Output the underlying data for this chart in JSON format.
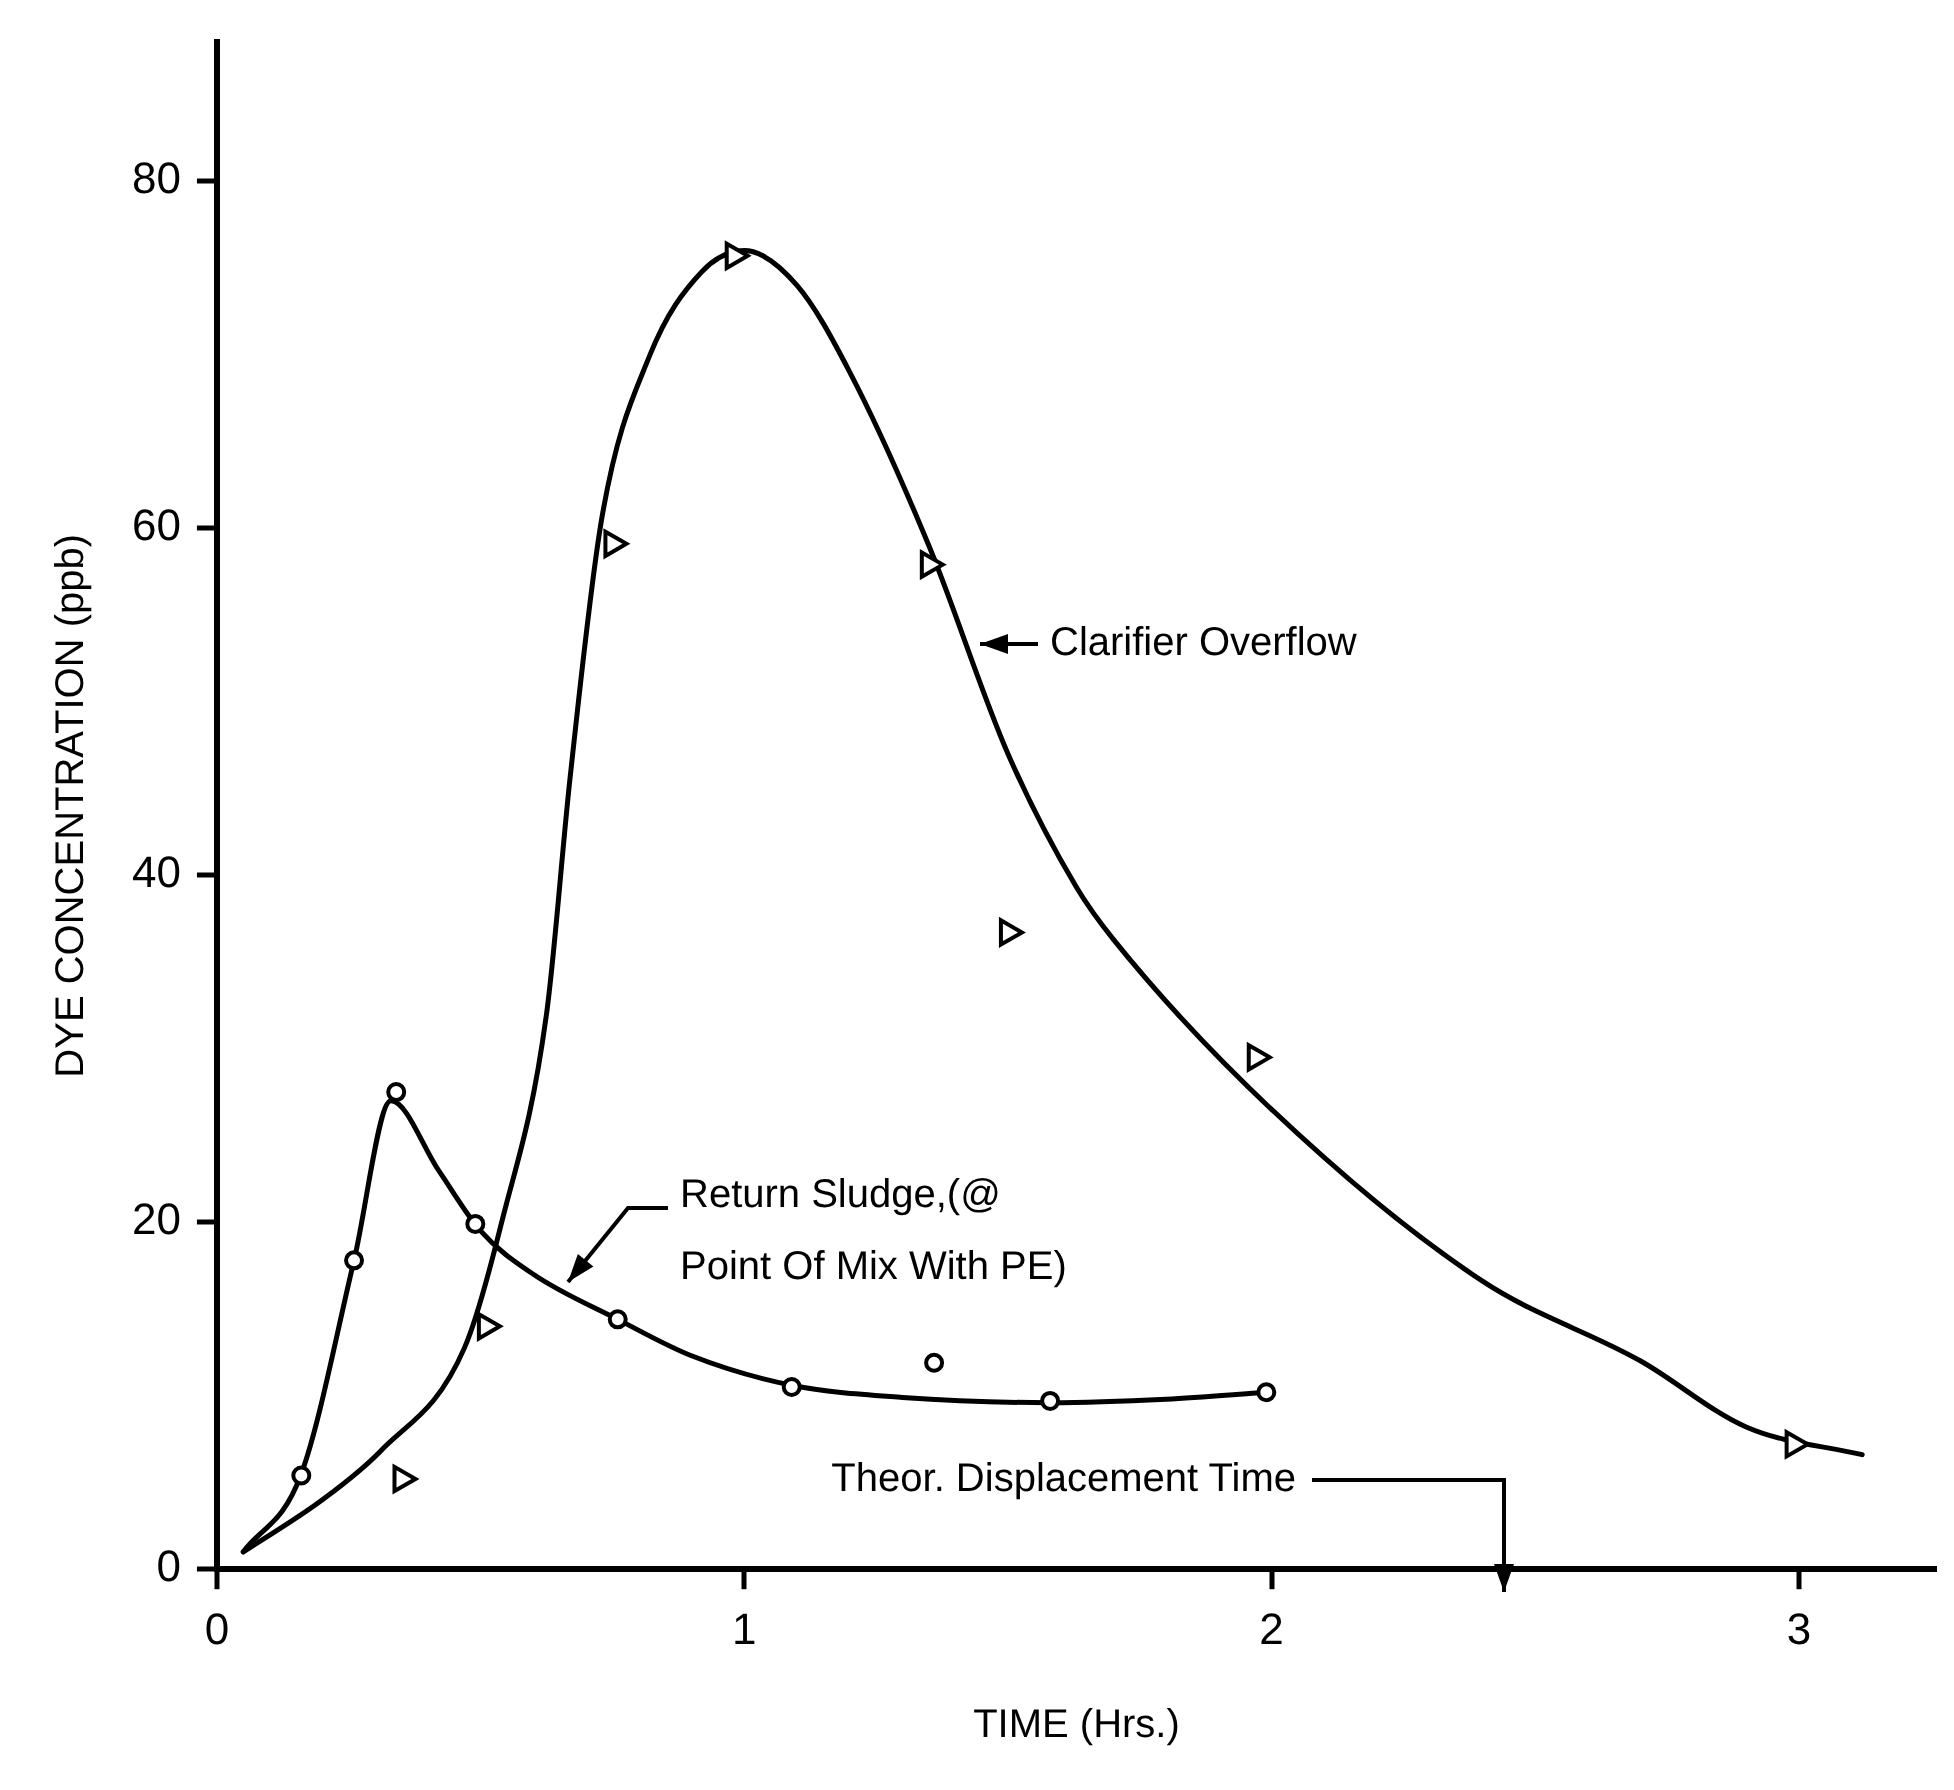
{
  "chart_data": {
    "type": "scatter",
    "xlabel": "TIME (Hrs.)",
    "ylabel": "DYE CONCENTRATION (ppb)",
    "xlim": [
      0,
      3.26
    ],
    "xticks": [
      0,
      1,
      2,
      3
    ],
    "ylim": [
      0,
      88
    ],
    "yticks": [
      0,
      20,
      40,
      60,
      80
    ],
    "grid": false,
    "legend": false,
    "series": [
      {
        "type": "scatter",
        "marker": "triangle",
        "color": "#000000",
        "x": [
          0.35,
          0.51,
          0.75,
          0.98,
          1.35,
          1.5,
          1.97,
          2.99
        ],
        "values": [
          5.2,
          14,
          59.1,
          75.7,
          57.9,
          36.7,
          29.5,
          7.2
        ]
      },
      {
        "type": "scatter",
        "marker": "circle",
        "color": "#000000",
        "x": [
          0.16,
          0.26,
          0.34,
          0.49,
          0.76,
          1.09,
          1.36,
          1.58,
          1.99
        ],
        "values": [
          5.4,
          17.8,
          27.5,
          19.9,
          14.4,
          10.5,
          11.9,
          9.7,
          10.2
        ]
      },
      {
        "type": "line",
        "marker": "none",
        "line_style": "solid",
        "color": "#000000",
        "x": [
          0.05,
          0.2,
          0.31,
          0.47,
          0.54,
          0.625,
          0.67,
          0.73,
          0.82,
          0.92,
          1.0,
          1.1,
          1.2,
          1.35,
          1.5,
          1.63,
          1.7,
          2.0,
          2.4,
          2.7,
          2.9,
          3.12
        ],
        "values": [
          1,
          4,
          6.8,
          12.8,
          20,
          32,
          45.7,
          60.6,
          69.9,
          74.8,
          76,
          74,
          69,
          59,
          47,
          39.3,
          36.3,
          26.5,
          16.6,
          12,
          8.2,
          6.6
        ]
      },
      {
        "type": "line",
        "marker": "none",
        "line_style": "solid",
        "color": "#000000",
        "x": [
          0.05,
          0.16,
          0.26,
          0.33,
          0.42,
          0.5,
          0.6,
          0.76,
          0.9,
          1.09,
          1.3,
          1.58,
          1.8,
          1.99
        ],
        "values": [
          1,
          5.5,
          17.8,
          27,
          23,
          19.5,
          17,
          14.4,
          12.3,
          10.6,
          9.9,
          9.6,
          9.8,
          10.2
        ]
      }
    ],
    "annotations": [
      "Clarifier Overflow",
      "Return Sludge,(@\nPoint Of Mix With PE)",
      "Theor. Displacement Time"
    ]
  }
}
